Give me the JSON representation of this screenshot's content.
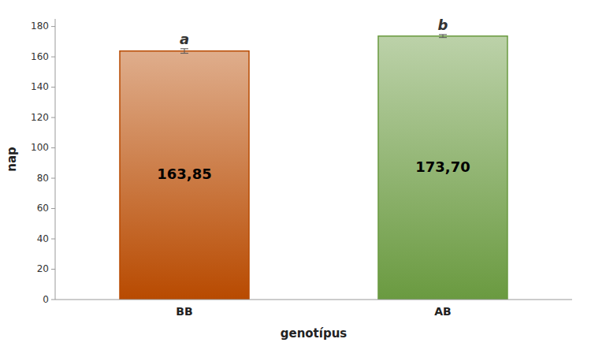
{
  "chart_data": {
    "type": "bar",
    "categories": [
      "BB",
      "AB"
    ],
    "values": [
      163.85,
      173.7
    ],
    "value_labels": [
      "163,85",
      "173,70"
    ],
    "data_labels": true,
    "errors": [
      1.5,
      1.0
    ],
    "sig_labels": [
      "a",
      "b"
    ],
    "colors": [
      "#B84A00",
      "#6A9A40"
    ],
    "xlabel": "genotípus",
    "ylabel": "nap",
    "ylim": [
      0,
      185
    ],
    "yticks": [
      0,
      20,
      40,
      60,
      80,
      100,
      120,
      140,
      160,
      180
    ],
    "grid": false
  }
}
